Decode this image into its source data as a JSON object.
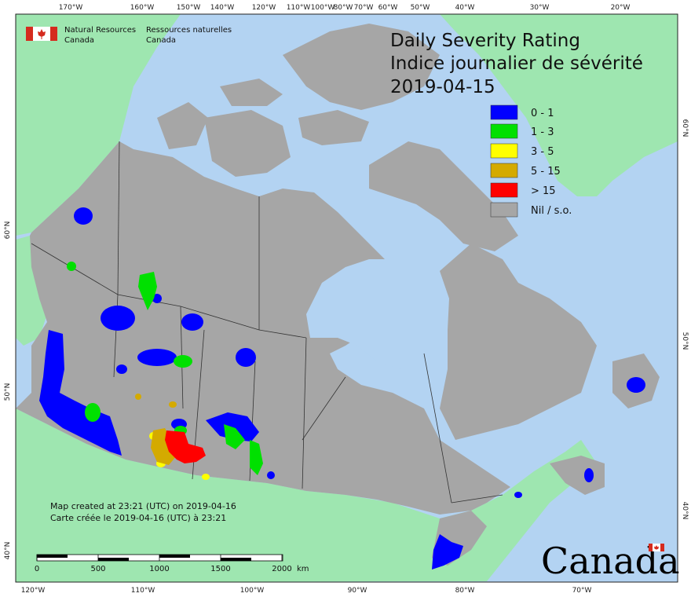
{
  "agency": {
    "en_line1": "Natural Resources",
    "en_line2": "Canada",
    "fr_line1": "Ressources naturelles",
    "fr_line2": "Canada"
  },
  "title": {
    "en": "Daily Severity Rating",
    "fr": "Indice journalier de sévérité",
    "date": "2019-04-15"
  },
  "legend": [
    {
      "label": "0 - 1",
      "color": "#0000ff"
    },
    {
      "label": "1 - 3",
      "color": "#00e000"
    },
    {
      "label": "3 - 5",
      "color": "#ffff00"
    },
    {
      "label": "5 - 15",
      "color": "#d4aa00"
    },
    {
      "label": "> 15",
      "color": "#ff0000"
    },
    {
      "label": "Nil / s.o.",
      "color": "#a6a6a6"
    }
  ],
  "colors": {
    "ocean": "#b3d3f2",
    "foreign_land": "#9ee6b0",
    "canada_nil": "#a6a6a6",
    "border": "#333333",
    "flag_red": "#d52b1e"
  },
  "credits": {
    "en": "Map created at 23:21 (UTC) on 2019-04-16",
    "fr": "Carte créée le 2019-04-16 (UTC) à 23:21"
  },
  "scale": {
    "ticks": [
      "0",
      "500",
      "1000",
      "1500",
      "2000"
    ],
    "unit": "km"
  },
  "graticule": {
    "top": [
      "170°W",
      "160°W",
      "150°W",
      "140°W",
      "120°W",
      "110°W",
      "100°W",
      "80°W",
      "70°W",
      "60°W",
      "50°W",
      "40°W",
      "30°W",
      "20°W"
    ],
    "bottom": [
      "120°W",
      "110°W",
      "100°W",
      "90°W",
      "80°W",
      "70°W"
    ],
    "left": [
      "60°N",
      "50°N",
      "40°N"
    ],
    "right": [
      "60°N",
      "50°N",
      "40°N"
    ]
  },
  "wordmark": "Canada"
}
